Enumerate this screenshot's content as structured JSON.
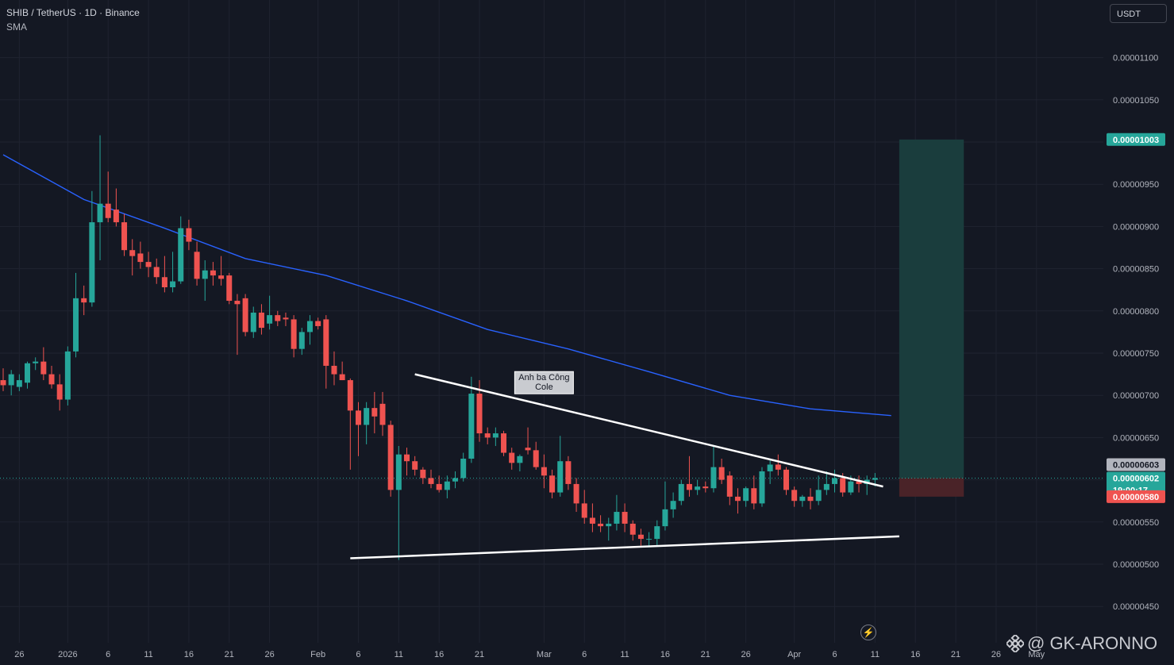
{
  "header": {
    "symbol_line": "SHIB / TetherUS · 1D · Binance",
    "indicator": "SMA"
  },
  "unit_button": "USDT",
  "watermark": "@ GK-ARONNO",
  "colors": {
    "background": "#141823",
    "grid": "#1f2330",
    "up": "#26a69a",
    "down": "#ef5350",
    "sma": "#2962ff",
    "trendline": "#ffffff",
    "target_zone": "#1a3d3d",
    "stop_zone": "#4a2328",
    "target_label": "#26a69a",
    "stop_label": "#ef5350",
    "price_label_grey": "#b2b5be"
  },
  "chart_data": {
    "type": "candlestick",
    "ylim": [
      4.2e-06,
      1.17e-05
    ],
    "y_ticks": [
      "0.00000450",
      "0.00000500",
      "0.00000550",
      "0.00000600",
      "0.00000650",
      "0.00000700",
      "0.00000750",
      "0.00000800",
      "0.00000850",
      "0.00000900",
      "0.00000950",
      "0.00001000",
      "0.00001050",
      "0.00001100"
    ],
    "x_ticks": [
      {
        "day": 0,
        "label": "26"
      },
      {
        "day": 6,
        "label": "2026"
      },
      {
        "day": 11,
        "label": "6"
      },
      {
        "day": 16,
        "label": "11"
      },
      {
        "day": 21,
        "label": "16"
      },
      {
        "day": 26,
        "label": "21"
      },
      {
        "day": 31,
        "label": "26"
      },
      {
        "day": 37,
        "label": "Feb"
      },
      {
        "day": 42,
        "label": "6"
      },
      {
        "day": 47,
        "label": "11"
      },
      {
        "day": 52,
        "label": "16"
      },
      {
        "day": 57,
        "label": "21"
      },
      {
        "day": 65,
        "label": "Mar"
      },
      {
        "day": 70,
        "label": "6"
      },
      {
        "day": 75,
        "label": "11"
      },
      {
        "day": 80,
        "label": "16"
      },
      {
        "day": 85,
        "label": "21"
      },
      {
        "day": 90,
        "label": "26"
      },
      {
        "day": 96,
        "label": "Apr"
      },
      {
        "day": 101,
        "label": "6"
      },
      {
        "day": 106,
        "label": "11"
      },
      {
        "day": 111,
        "label": "16"
      },
      {
        "day": 116,
        "label": "21"
      },
      {
        "day": 121,
        "label": "26"
      },
      {
        "day": 126,
        "label": "May"
      }
    ],
    "candles": [
      {
        "o": 7.18,
        "h": 7.32,
        "l": 7.05,
        "c": 7.12
      },
      {
        "o": 7.12,
        "h": 7.3,
        "l": 7.0,
        "c": 7.25
      },
      {
        "o": 7.1,
        "h": 7.25,
        "l": 7.05,
        "c": 7.18
      },
      {
        "o": 7.15,
        "h": 7.4,
        "l": 7.08,
        "c": 7.38
      },
      {
        "o": 7.38,
        "h": 7.45,
        "l": 7.3,
        "c": 7.4
      },
      {
        "o": 7.4,
        "h": 7.57,
        "l": 7.18,
        "c": 7.25
      },
      {
        "o": 7.25,
        "h": 7.35,
        "l": 7.08,
        "c": 7.13
      },
      {
        "o": 7.13,
        "h": 7.25,
        "l": 6.82,
        "c": 6.95
      },
      {
        "o": 6.95,
        "h": 7.58,
        "l": 6.88,
        "c": 7.52
      },
      {
        "o": 7.52,
        "h": 8.45,
        "l": 7.45,
        "c": 8.15
      },
      {
        "o": 8.15,
        "h": 8.3,
        "l": 7.95,
        "c": 8.1
      },
      {
        "o": 8.1,
        "h": 9.42,
        "l": 8.05,
        "c": 9.05
      },
      {
        "o": 9.05,
        "h": 10.08,
        "l": 8.6,
        "c": 9.27
      },
      {
        "o": 9.27,
        "h": 9.65,
        "l": 9.05,
        "c": 9.1
      },
      {
        "o": 9.2,
        "h": 9.45,
        "l": 9.0,
        "c": 9.05
      },
      {
        "o": 9.05,
        "h": 9.15,
        "l": 8.65,
        "c": 8.72
      },
      {
        "o": 8.72,
        "h": 8.85,
        "l": 8.42,
        "c": 8.65
      },
      {
        "o": 8.68,
        "h": 8.82,
        "l": 8.5,
        "c": 8.58
      },
      {
        "o": 8.58,
        "h": 8.7,
        "l": 8.4,
        "c": 8.52
      },
      {
        "o": 8.52,
        "h": 8.62,
        "l": 8.32,
        "c": 8.4
      },
      {
        "o": 8.4,
        "h": 8.65,
        "l": 8.22,
        "c": 8.28
      },
      {
        "o": 8.28,
        "h": 8.7,
        "l": 8.22,
        "c": 8.35
      },
      {
        "o": 8.35,
        "h": 9.12,
        "l": 8.32,
        "c": 8.98
      },
      {
        "o": 8.98,
        "h": 9.08,
        "l": 8.72,
        "c": 8.82
      },
      {
        "o": 8.7,
        "h": 8.82,
        "l": 8.3,
        "c": 8.38
      },
      {
        "o": 8.38,
        "h": 8.6,
        "l": 8.12,
        "c": 8.48
      },
      {
        "o": 8.48,
        "h": 8.58,
        "l": 8.3,
        "c": 8.42
      },
      {
        "o": 8.42,
        "h": 8.65,
        "l": 8.3,
        "c": 8.38
      },
      {
        "o": 8.42,
        "h": 8.45,
        "l": 8.08,
        "c": 8.12
      },
      {
        "o": 8.12,
        "h": 8.2,
        "l": 7.48,
        "c": 8.08
      },
      {
        "o": 8.15,
        "h": 8.2,
        "l": 7.7,
        "c": 7.75
      },
      {
        "o": 7.75,
        "h": 8.05,
        "l": 7.68,
        "c": 7.98
      },
      {
        "o": 7.98,
        "h": 8.08,
        "l": 7.72,
        "c": 7.8
      },
      {
        "o": 7.85,
        "h": 8.18,
        "l": 7.78,
        "c": 7.95
      },
      {
        "o": 7.95,
        "h": 8.0,
        "l": 7.82,
        "c": 7.88
      },
      {
        "o": 7.92,
        "h": 7.98,
        "l": 7.82,
        "c": 7.9
      },
      {
        "o": 7.9,
        "h": 7.95,
        "l": 7.45,
        "c": 7.55
      },
      {
        "o": 7.55,
        "h": 7.8,
        "l": 7.48,
        "c": 7.75
      },
      {
        "o": 7.75,
        "h": 7.95,
        "l": 7.6,
        "c": 7.88
      },
      {
        "o": 7.88,
        "h": 7.92,
        "l": 7.78,
        "c": 7.82
      },
      {
        "o": 7.9,
        "h": 7.95,
        "l": 7.08,
        "c": 7.35
      },
      {
        "o": 7.35,
        "h": 7.52,
        "l": 7.12,
        "c": 7.25
      },
      {
        "o": 7.25,
        "h": 7.4,
        "l": 7.18,
        "c": 7.18
      },
      {
        "o": 7.18,
        "h": 7.2,
        "l": 6.12,
        "c": 6.82
      },
      {
        "o": 6.82,
        "h": 6.92,
        "l": 6.28,
        "c": 6.65
      },
      {
        "o": 6.65,
        "h": 6.92,
        "l": 6.42,
        "c": 6.85
      },
      {
        "o": 6.85,
        "h": 7.04,
        "l": 6.55,
        "c": 6.75
      },
      {
        "o": 6.9,
        "h": 7.04,
        "l": 6.52,
        "c": 6.65
      },
      {
        "o": 6.65,
        "h": 6.7,
        "l": 5.8,
        "c": 5.88
      },
      {
        "o": 5.88,
        "h": 6.4,
        "l": 5.05,
        "c": 6.3
      },
      {
        "o": 6.3,
        "h": 6.38,
        "l": 6.05,
        "c": 6.22
      },
      {
        "o": 6.22,
        "h": 6.28,
        "l": 6.05,
        "c": 6.12
      },
      {
        "o": 6.12,
        "h": 6.15,
        "l": 5.95,
        "c": 6.02
      },
      {
        "o": 6.02,
        "h": 6.12,
        "l": 5.9,
        "c": 5.95
      },
      {
        "o": 5.95,
        "h": 6.05,
        "l": 5.85,
        "c": 5.88
      },
      {
        "o": 5.88,
        "h": 6.05,
        "l": 5.78,
        "c": 5.98
      },
      {
        "o": 5.98,
        "h": 6.1,
        "l": 5.9,
        "c": 6.02
      },
      {
        "o": 6.02,
        "h": 6.32,
        "l": 5.98,
        "c": 6.25
      },
      {
        "o": 6.25,
        "h": 7.22,
        "l": 6.2,
        "c": 7.02
      },
      {
        "o": 7.02,
        "h": 7.18,
        "l": 6.45,
        "c": 6.55
      },
      {
        "o": 6.55,
        "h": 6.62,
        "l": 6.42,
        "c": 6.5
      },
      {
        "o": 6.5,
        "h": 6.62,
        "l": 6.4,
        "c": 6.55
      },
      {
        "o": 6.55,
        "h": 6.58,
        "l": 6.28,
        "c": 6.32
      },
      {
        "o": 6.32,
        "h": 6.38,
        "l": 6.12,
        "c": 6.2
      },
      {
        "o": 6.2,
        "h": 6.3,
        "l": 6.1,
        "c": 6.28
      },
      {
        "o": 6.38,
        "h": 6.62,
        "l": 6.3,
        "c": 6.35
      },
      {
        "o": 6.35,
        "h": 6.45,
        "l": 6.12,
        "c": 6.15
      },
      {
        "o": 6.15,
        "h": 6.3,
        "l": 5.9,
        "c": 6.05
      },
      {
        "o": 6.05,
        "h": 6.12,
        "l": 5.78,
        "c": 5.85
      },
      {
        "o": 5.85,
        "h": 6.52,
        "l": 5.8,
        "c": 6.22
      },
      {
        "o": 6.22,
        "h": 6.28,
        "l": 5.88,
        "c": 5.95
      },
      {
        "o": 5.95,
        "h": 6.02,
        "l": 5.62,
        "c": 5.72
      },
      {
        "o": 5.72,
        "h": 5.88,
        "l": 5.48,
        "c": 5.55
      },
      {
        "o": 5.55,
        "h": 5.72,
        "l": 5.38,
        "c": 5.48
      },
      {
        "o": 5.48,
        "h": 5.58,
        "l": 5.38,
        "c": 5.45
      },
      {
        "o": 5.45,
        "h": 5.55,
        "l": 5.28,
        "c": 5.48
      },
      {
        "o": 5.48,
        "h": 5.82,
        "l": 5.4,
        "c": 5.62
      },
      {
        "o": 5.62,
        "h": 5.72,
        "l": 5.38,
        "c": 5.48
      },
      {
        "o": 5.48,
        "h": 5.52,
        "l": 5.28,
        "c": 5.35
      },
      {
        "o": 5.35,
        "h": 5.42,
        "l": 5.22,
        "c": 5.3
      },
      {
        "o": 5.3,
        "h": 5.38,
        "l": 5.22,
        "c": 5.3
      },
      {
        "o": 5.3,
        "h": 5.52,
        "l": 5.22,
        "c": 5.45
      },
      {
        "o": 5.45,
        "h": 5.98,
        "l": 5.4,
        "c": 5.65
      },
      {
        "o": 5.65,
        "h": 5.85,
        "l": 5.55,
        "c": 5.75
      },
      {
        "o": 5.75,
        "h": 6.0,
        "l": 5.7,
        "c": 5.95
      },
      {
        "o": 5.95,
        "h": 6.28,
        "l": 5.8,
        "c": 5.88
      },
      {
        "o": 5.88,
        "h": 6.0,
        "l": 5.82,
        "c": 5.92
      },
      {
        "o": 5.92,
        "h": 5.98,
        "l": 5.85,
        "c": 5.9
      },
      {
        "o": 5.9,
        "h": 6.4,
        "l": 5.85,
        "c": 6.15
      },
      {
        "o": 6.15,
        "h": 6.25,
        "l": 5.95,
        "c": 6.0
      },
      {
        "o": 6.05,
        "h": 6.1,
        "l": 5.7,
        "c": 5.8
      },
      {
        "o": 5.8,
        "h": 5.9,
        "l": 5.6,
        "c": 5.75
      },
      {
        "o": 5.75,
        "h": 5.92,
        "l": 5.68,
        "c": 5.9
      },
      {
        "o": 5.9,
        "h": 6.05,
        "l": 5.65,
        "c": 5.72
      },
      {
        "o": 5.72,
        "h": 6.15,
        "l": 5.68,
        "c": 6.1
      },
      {
        "o": 6.1,
        "h": 6.25,
        "l": 5.95,
        "c": 6.18
      },
      {
        "o": 6.18,
        "h": 6.3,
        "l": 6.05,
        "c": 6.12
      },
      {
        "o": 6.12,
        "h": 6.15,
        "l": 5.82,
        "c": 5.88
      },
      {
        "o": 5.88,
        "h": 5.92,
        "l": 5.68,
        "c": 5.75
      },
      {
        "o": 5.75,
        "h": 5.82,
        "l": 5.68,
        "c": 5.8
      },
      {
        "o": 5.8,
        "h": 5.9,
        "l": 5.65,
        "c": 5.75
      },
      {
        "o": 5.75,
        "h": 6.05,
        "l": 5.7,
        "c": 5.88
      },
      {
        "o": 5.88,
        "h": 6.1,
        "l": 5.82,
        "c": 5.95
      },
      {
        "o": 5.95,
        "h": 6.12,
        "l": 5.85,
        "c": 6.02
      },
      {
        "o": 6.02,
        "h": 6.08,
        "l": 5.8,
        "c": 5.85
      },
      {
        "o": 5.85,
        "h": 6.05,
        "l": 5.82,
        "c": 5.98
      },
      {
        "o": 5.98,
        "h": 6.05,
        "l": 5.85,
        "c": 5.95
      },
      {
        "o": 5.95,
        "h": 6.05,
        "l": 5.82,
        "c": 6.0
      },
      {
        "o": 6.0,
        "h": 6.08,
        "l": 5.92,
        "c": 6.02
      }
    ],
    "sma": [
      [
        0,
        9.85
      ],
      [
        10,
        9.32
      ],
      [
        20,
        8.98
      ],
      [
        30,
        8.62
      ],
      [
        40,
        8.42
      ],
      [
        50,
        8.12
      ],
      [
        60,
        7.78
      ],
      [
        70,
        7.55
      ],
      [
        80,
        7.28
      ],
      [
        90,
        7.0
      ],
      [
        100,
        6.84
      ],
      [
        110,
        6.76
      ]
    ],
    "trendlines": [
      {
        "from": [
          51,
          7.25
        ],
        "to": [
          109,
          5.92
        ]
      },
      {
        "from": [
          43,
          5.07
        ],
        "to": [
          111,
          5.33
        ]
      }
    ],
    "position": {
      "entry": 6.02,
      "target": 10.03,
      "stop": 5.8,
      "x_from": 111,
      "x_to": 119
    },
    "annotation": {
      "day": 67,
      "price": 7.15,
      "text_lines": [
        "Anh ba Công",
        "Cole"
      ]
    },
    "price_labels": {
      "grey": "0.00000603",
      "current": "0.00000602",
      "countdown": "19:00:17",
      "target": "0.00001003",
      "stop": "0.00000580"
    }
  }
}
